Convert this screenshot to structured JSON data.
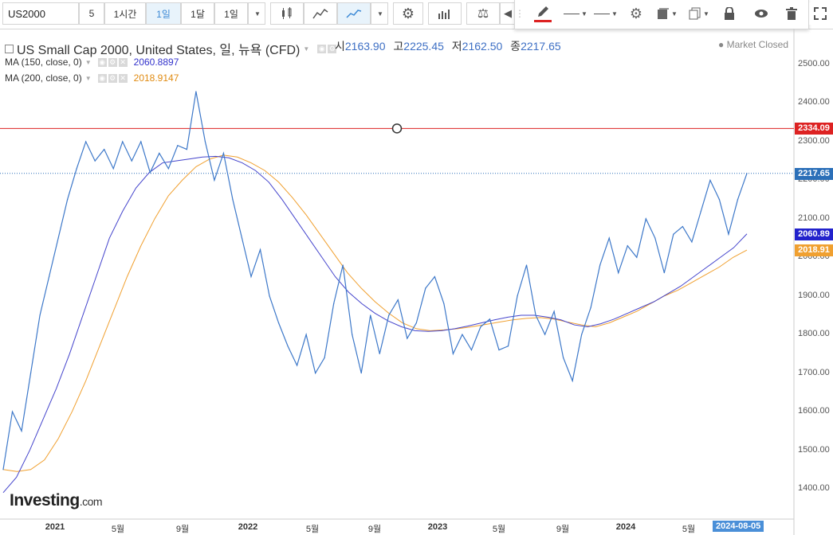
{
  "toolbar": {
    "symbol": "US2000",
    "intervals": [
      "5",
      "1시간",
      "1일",
      "1달",
      "1일"
    ],
    "active_interval": "1일"
  },
  "drawing_toolbar": {
    "icons": [
      "pencil-icon",
      "line-style-icon",
      "line-width-icon",
      "gear-icon",
      "fill-icon",
      "copy-icon",
      "lock-icon",
      "eye-icon",
      "trash-icon"
    ],
    "expand_icon": "expand-icon"
  },
  "legend": {
    "title": "US Small Cap 2000, United States, 일, 뉴욕 (CFD)",
    "ohlc": [
      {
        "label": "시",
        "value": "2163.90"
      },
      {
        "label": "고",
        "value": "2225.45"
      },
      {
        "label": "저",
        "value": "2162.50"
      },
      {
        "label": "종",
        "value": "2217.65"
      }
    ],
    "ma150_label": "MA (150, close, 0)",
    "ma150_value": "2060.8897",
    "ma200_label": "MA (200, close, 0)",
    "ma200_value": "2018.9147",
    "market_status": "Market Closed"
  },
  "logo": {
    "main": "Investing",
    "suffix": ".com"
  },
  "colors": {
    "price": "#3d78c9",
    "ma150": "#4444cc",
    "ma200": "#f0a030",
    "hline": "#d22",
    "last": "#2b6fb8"
  },
  "chart_data": {
    "type": "line",
    "ylim": [
      1350,
      2550
    ],
    "yticks": [
      "2500.00",
      "2400.00",
      "2300.00",
      "2200.00",
      "2100.00",
      "2000.00",
      "1900.00",
      "1800.00",
      "1700.00",
      "1600.00",
      "1500.00",
      "1400.00"
    ],
    "xticks": [
      "2021",
      "5월",
      "9월",
      "2022",
      "5월",
      "9월",
      "2023",
      "5월",
      "9월",
      "2024",
      "5월"
    ],
    "x_current_label": "2024-08-05",
    "horizontal_line": {
      "value": 2334.09,
      "label": "2334.09"
    },
    "last_price_label": "2217.65",
    "ma150_label": "2060.89",
    "ma200_label": "2018.91",
    "price": [
      1450,
      1600,
      1550,
      1700,
      1850,
      1950,
      2050,
      2150,
      2230,
      2300,
      2250,
      2280,
      2230,
      2300,
      2250,
      2300,
      2220,
      2270,
      2230,
      2290,
      2280,
      2430,
      2300,
      2200,
      2270,
      2150,
      2050,
      1950,
      2020,
      1900,
      1830,
      1770,
      1720,
      1800,
      1700,
      1740,
      1880,
      1980,
      1800,
      1700,
      1850,
      1750,
      1850,
      1890,
      1790,
      1830,
      1920,
      1950,
      1880,
      1750,
      1800,
      1760,
      1820,
      1840,
      1760,
      1770,
      1900,
      1980,
      1850,
      1800,
      1860,
      1740,
      1680,
      1800,
      1870,
      1980,
      2050,
      1960,
      2030,
      2000,
      2100,
      2050,
      1960,
      2060,
      2080,
      2040,
      2120,
      2200,
      2150,
      2060,
      2150,
      2217.65
    ],
    "ma150": [
      1390,
      1430,
      1500,
      1580,
      1660,
      1750,
      1850,
      1950,
      2050,
      2120,
      2180,
      2220,
      2245,
      2250,
      2255,
      2260,
      2262,
      2258,
      2245,
      2225,
      2195,
      2150,
      2100,
      2050,
      2000,
      1950,
      1910,
      1880,
      1855,
      1835,
      1820,
      1810,
      1808,
      1810,
      1815,
      1822,
      1830,
      1838,
      1845,
      1850,
      1850,
      1845,
      1838,
      1825,
      1820,
      1828,
      1840,
      1855,
      1870,
      1885,
      1905,
      1925,
      1950,
      1975,
      2000,
      2025,
      2060.89
    ],
    "ma200": [
      1450,
      1445,
      1450,
      1475,
      1530,
      1600,
      1680,
      1770,
      1860,
      1950,
      2030,
      2100,
      2160,
      2200,
      2235,
      2255,
      2265,
      2260,
      2245,
      2225,
      2195,
      2155,
      2110,
      2060,
      2010,
      1960,
      1920,
      1885,
      1855,
      1830,
      1815,
      1810,
      1812,
      1815,
      1820,
      1826,
      1832,
      1838,
      1842,
      1844,
      1840,
      1832,
      1825,
      1820,
      1830,
      1845,
      1860,
      1880,
      1900,
      1915,
      1935,
      1955,
      1975,
      2000,
      2018.91
    ]
  }
}
